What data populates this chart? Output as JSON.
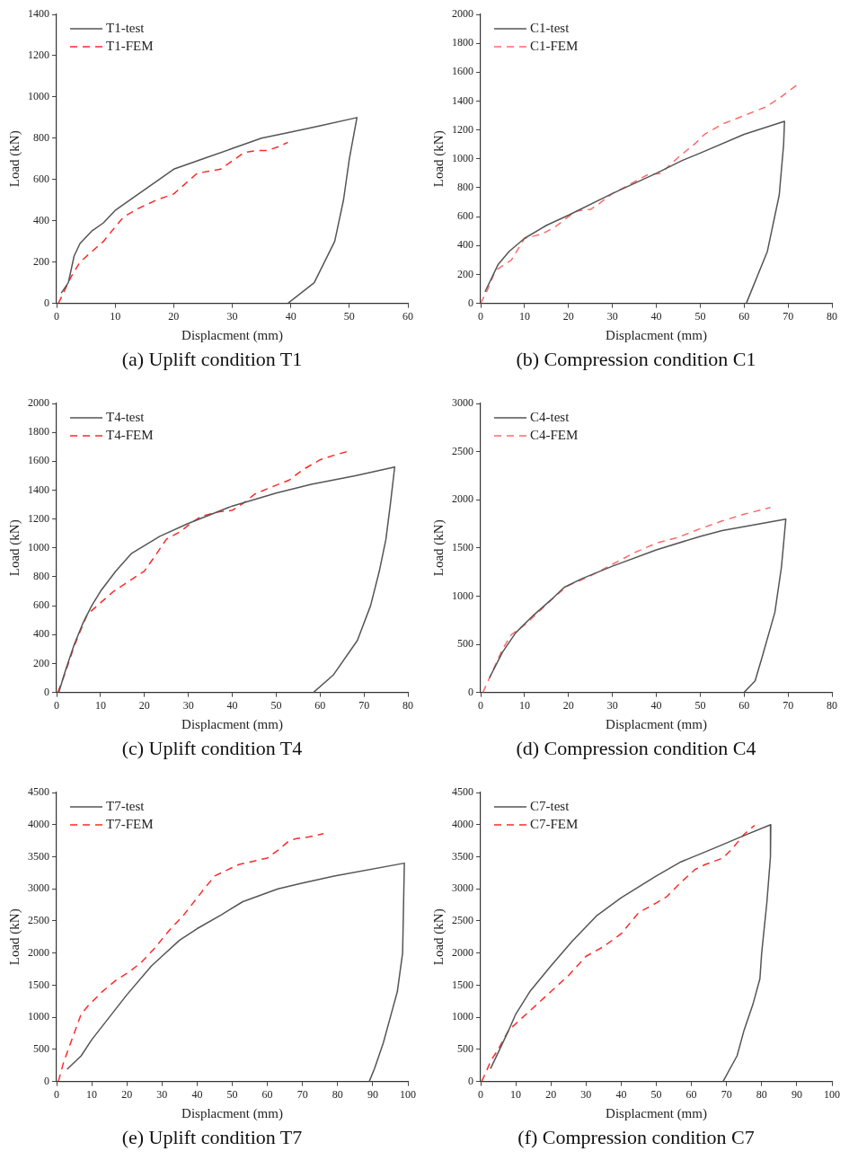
{
  "chart_data": [
    {
      "type": "line",
      "title": "(a) Uplift condition T1",
      "xlabel": "Displacment (mm)",
      "ylabel": "Load (kN)",
      "legend": "top left",
      "grid": false,
      "xlim": [
        0,
        60
      ],
      "xticks": [
        0,
        10,
        20,
        30,
        40,
        50,
        60
      ],
      "ylim": [
        0,
        1400
      ],
      "yticks": [
        0,
        200,
        400,
        600,
        800,
        1000,
        1200,
        1400
      ],
      "series": [
        {
          "name": "T1-test",
          "color": "#555555",
          "line_style": "solid",
          "x": [
            0.8,
            2,
            3,
            4,
            6,
            8,
            10,
            13,
            17,
            20,
            25,
            30,
            35,
            40,
            45,
            51.3,
            50,
            49,
            47.5,
            44,
            39.5
          ],
          "values": [
            50,
            100,
            230,
            290,
            350,
            390,
            450,
            510,
            590,
            650,
            700,
            750,
            800,
            830,
            860,
            900,
            700,
            500,
            300,
            100,
            0
          ]
        },
        {
          "name": "T1-FEM",
          "color": "#ff2a2a",
          "line_style": "dashed",
          "x": [
            0.3,
            1.5,
            2.5,
            4,
            6,
            8,
            10,
            11.5,
            14,
            17,
            20,
            22,
            24,
            26,
            28,
            30,
            32,
            34,
            36,
            38,
            39.5
          ],
          "values": [
            0,
            70,
            130,
            200,
            250,
            300,
            370,
            420,
            460,
            500,
            530,
            580,
            630,
            640,
            650,
            690,
            730,
            740,
            740,
            760,
            780
          ]
        }
      ]
    },
    {
      "type": "line",
      "title": "(b) Compression condition C1",
      "xlabel": "Displacment (mm)",
      "ylabel": "Load (kN)",
      "legend": "top left",
      "grid": false,
      "xlim": [
        0,
        80
      ],
      "xticks": [
        0,
        10,
        20,
        30,
        40,
        50,
        60,
        70,
        80
      ],
      "ylim": [
        0,
        2000
      ],
      "yticks": [
        0,
        200,
        400,
        600,
        800,
        1000,
        1200,
        1400,
        1600,
        1800,
        2000
      ],
      "series": [
        {
          "name": "C1-test",
          "color": "#555555",
          "line_style": "solid",
          "x": [
            1,
            4,
            6.5,
            10,
            15,
            20,
            30,
            40,
            46,
            50,
            60,
            69.2,
            69,
            68,
            65.3,
            60.5
          ],
          "values": [
            80,
            270,
            360,
            450,
            540,
            610,
            760,
            900,
            990,
            1040,
            1170,
            1260,
            1100,
            750,
            360,
            0
          ]
        },
        {
          "name": "C1-FEM",
          "color": "#ff6b6b",
          "line_style": "dashed",
          "x": [
            0,
            1.5,
            3,
            4,
            7,
            10,
            14,
            17,
            20,
            22,
            25,
            27,
            30,
            35,
            38,
            41,
            45,
            49,
            51,
            55,
            60,
            65,
            68,
            72
          ],
          "values": [
            0,
            90,
            200,
            240,
            300,
            450,
            480,
            530,
            600,
            640,
            650,
            690,
            760,
            840,
            890,
            900,
            1010,
            1110,
            1170,
            1240,
            1300,
            1360,
            1420,
            1510
          ]
        }
      ]
    },
    {
      "type": "line",
      "title": "(c) Uplift condition T4",
      "xlabel": "Displacment (mm)",
      "ylabel": "Load (kN)",
      "legend": "top left",
      "grid": false,
      "xlim": [
        0,
        80
      ],
      "xticks": [
        0,
        10,
        20,
        30,
        40,
        50,
        60,
        70,
        80
      ],
      "ylim": [
        0,
        2000
      ],
      "yticks": [
        0,
        200,
        400,
        600,
        800,
        1000,
        1200,
        1400,
        1600,
        1800,
        2000
      ],
      "series": [
        {
          "name": "T4-test",
          "color": "#555555",
          "line_style": "solid",
          "x": [
            0.5,
            2,
            4,
            6,
            8,
            10,
            13.5,
            17,
            23.5,
            30,
            40,
            50,
            58,
            68,
            77,
            76,
            75,
            73.5,
            71.5,
            68.5,
            63,
            58.5
          ],
          "values": [
            0,
            150,
            330,
            480,
            600,
            700,
            840,
            960,
            1080,
            1170,
            1290,
            1380,
            1440,
            1500,
            1560,
            1300,
            1060,
            840,
            600,
            360,
            120,
            0
          ]
        },
        {
          "name": "T4-FEM",
          "color": "#ff2a2a",
          "line_style": "dashed",
          "x": [
            0.3,
            2,
            4,
            6,
            7,
            10,
            13,
            17,
            20,
            23,
            25,
            28,
            31,
            33,
            37,
            40,
            43,
            45,
            48,
            53,
            56,
            60,
            63,
            66.5
          ],
          "values": [
            0,
            140,
            320,
            470,
            540,
            620,
            700,
            780,
            840,
            970,
            1060,
            1110,
            1180,
            1220,
            1250,
            1260,
            1320,
            1370,
            1410,
            1470,
            1540,
            1610,
            1640,
            1670
          ]
        }
      ]
    },
    {
      "type": "line",
      "title": "(d) Compression condition C4",
      "xlabel": "Displacment (mm)",
      "ylabel": "Load (kN)",
      "legend": "top left",
      "grid": false,
      "xlim": [
        0,
        80
      ],
      "xticks": [
        0,
        10,
        20,
        30,
        40,
        50,
        60,
        70,
        80
      ],
      "ylim": [
        0,
        3000
      ],
      "yticks": [
        0,
        500,
        1000,
        1500,
        2000,
        2500,
        3000
      ],
      "series": [
        {
          "name": "C4-test",
          "color": "#555555",
          "line_style": "solid",
          "x": [
            2,
            5,
            8,
            12,
            16,
            19,
            23,
            30,
            40,
            50,
            55,
            69.5,
            68.5,
            67,
            64,
            62.5,
            60
          ],
          "values": [
            150,
            420,
            620,
            800,
            960,
            1090,
            1180,
            1310,
            1480,
            1620,
            1680,
            1800,
            1300,
            830,
            350,
            120,
            0
          ]
        },
        {
          "name": "C4-FEM",
          "color": "#ff6b6b",
          "line_style": "dashed",
          "x": [
            0.5,
            2,
            5,
            7,
            10,
            14,
            17,
            20,
            25,
            30,
            35,
            40,
            45,
            50,
            55,
            60,
            66
          ],
          "values": [
            0,
            150,
            450,
            600,
            700,
            870,
            1000,
            1110,
            1210,
            1330,
            1450,
            1550,
            1610,
            1700,
            1780,
            1850,
            1920
          ]
        }
      ]
    },
    {
      "type": "line",
      "title": "(e) Uplift condition T7",
      "xlabel": "Displacment (mm)",
      "ylabel": "Load (kN)",
      "legend": "top left",
      "grid": false,
      "xlim": [
        0,
        100
      ],
      "xticks": [
        0,
        10,
        20,
        30,
        40,
        50,
        60,
        70,
        80,
        90,
        100
      ],
      "ylim": [
        0,
        4500
      ],
      "yticks": [
        0,
        500,
        1000,
        1500,
        2000,
        2500,
        3000,
        3500,
        4000,
        4500
      ],
      "series": [
        {
          "name": "T7-test",
          "color": "#555555",
          "line_style": "solid",
          "x": [
            3,
            7,
            10,
            15,
            20,
            27,
            30,
            35,
            40,
            47,
            53,
            63,
            70,
            79,
            99,
            98.5,
            98,
            97,
            95,
            93,
            90.5,
            89
          ],
          "values": [
            190,
            400,
            650,
            1000,
            1350,
            1800,
            1950,
            2200,
            2380,
            2600,
            2800,
            3000,
            3090,
            3200,
            3400,
            2000,
            1800,
            1400,
            1000,
            600,
            200,
            0
          ]
        },
        {
          "name": "T7-FEM",
          "color": "#ff2a2a",
          "line_style": "dashed",
          "x": [
            0.5,
            2,
            4,
            7,
            9,
            13,
            17,
            21,
            24,
            28,
            32,
            36,
            42,
            45,
            48,
            52,
            56,
            60,
            63,
            66,
            68,
            72,
            76
          ],
          "values": [
            0,
            300,
            600,
            1050,
            1180,
            1400,
            1580,
            1720,
            1850,
            2080,
            2350,
            2580,
            3000,
            3200,
            3280,
            3380,
            3430,
            3480,
            3600,
            3740,
            3780,
            3810,
            3860
          ]
        }
      ]
    },
    {
      "type": "line",
      "title": "(f) Compression condition C7",
      "xlabel": "Displacment (mm)",
      "ylabel": "Load (kN)",
      "legend": "top left",
      "grid": false,
      "xlim": [
        0,
        100
      ],
      "xticks": [
        0,
        10,
        20,
        30,
        40,
        50,
        60,
        70,
        80,
        90,
        100
      ],
      "ylim": [
        0,
        4500
      ],
      "yticks": [
        0,
        500,
        1000,
        1500,
        2000,
        2500,
        3000,
        3500,
        4000,
        4500
      ],
      "series": [
        {
          "name": "C7-test",
          "color": "#555555",
          "line_style": "solid",
          "x": [
            2.8,
            5,
            8,
            10,
            14,
            20,
            26,
            33,
            40,
            50,
            57,
            65,
            75,
            82.6,
            82.5,
            81.5,
            80,
            79.5,
            77.5,
            75,
            73,
            69
          ],
          "values": [
            200,
            450,
            800,
            1050,
            1400,
            1800,
            2180,
            2580,
            2860,
            3200,
            3420,
            3600,
            3830,
            4000,
            3500,
            2800,
            2000,
            1600,
            1200,
            800,
            400,
            0
          ]
        },
        {
          "name": "C7-FEM",
          "color": "#ff2a2a",
          "line_style": "dashed",
          "x": [
            0.3,
            3,
            5,
            8,
            12,
            16,
            20,
            25,
            30,
            35,
            40,
            45,
            50,
            53,
            57,
            61,
            64,
            69,
            72,
            75,
            78
          ],
          "values": [
            0,
            330,
            500,
            800,
            1000,
            1200,
            1400,
            1650,
            1950,
            2100,
            2300,
            2630,
            2780,
            2880,
            3100,
            3300,
            3380,
            3480,
            3650,
            3850,
            3990
          ]
        }
      ]
    }
  ]
}
